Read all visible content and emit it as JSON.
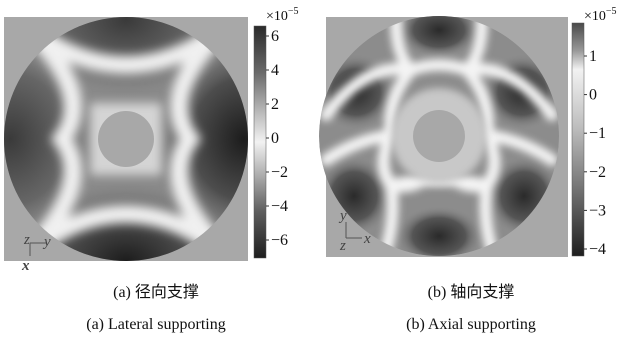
{
  "panels": [
    {
      "id": "a",
      "colorbar": {
        "multiplier": "×10",
        "exponent": "−5",
        "ticks": [
          "6",
          "4",
          "2",
          "0",
          "−2",
          "−4",
          "−6"
        ]
      },
      "axes": {
        "labels": [
          "z",
          "y",
          "x"
        ]
      },
      "caption_cn": "(a) 径向支撑",
      "caption_en": "(a) Lateral supporting"
    },
    {
      "id": "b",
      "colorbar": {
        "multiplier": "×10",
        "exponent": "−5",
        "ticks": [
          "1",
          "0",
          "−1",
          "−2",
          "−3",
          "−4"
        ]
      },
      "axes": {
        "labels": [
          "y",
          "z",
          "x"
        ]
      },
      "caption_cn": "(b) 轴向支撑",
      "caption_en": "(b) Axial supporting"
    }
  ],
  "colors": {
    "background_square": "#a8a8a8",
    "colorbar_top": "#2d2d2d",
    "colorbar_mid": "#f2f2f2",
    "colorbar_bottom": "#1e1e1e"
  }
}
